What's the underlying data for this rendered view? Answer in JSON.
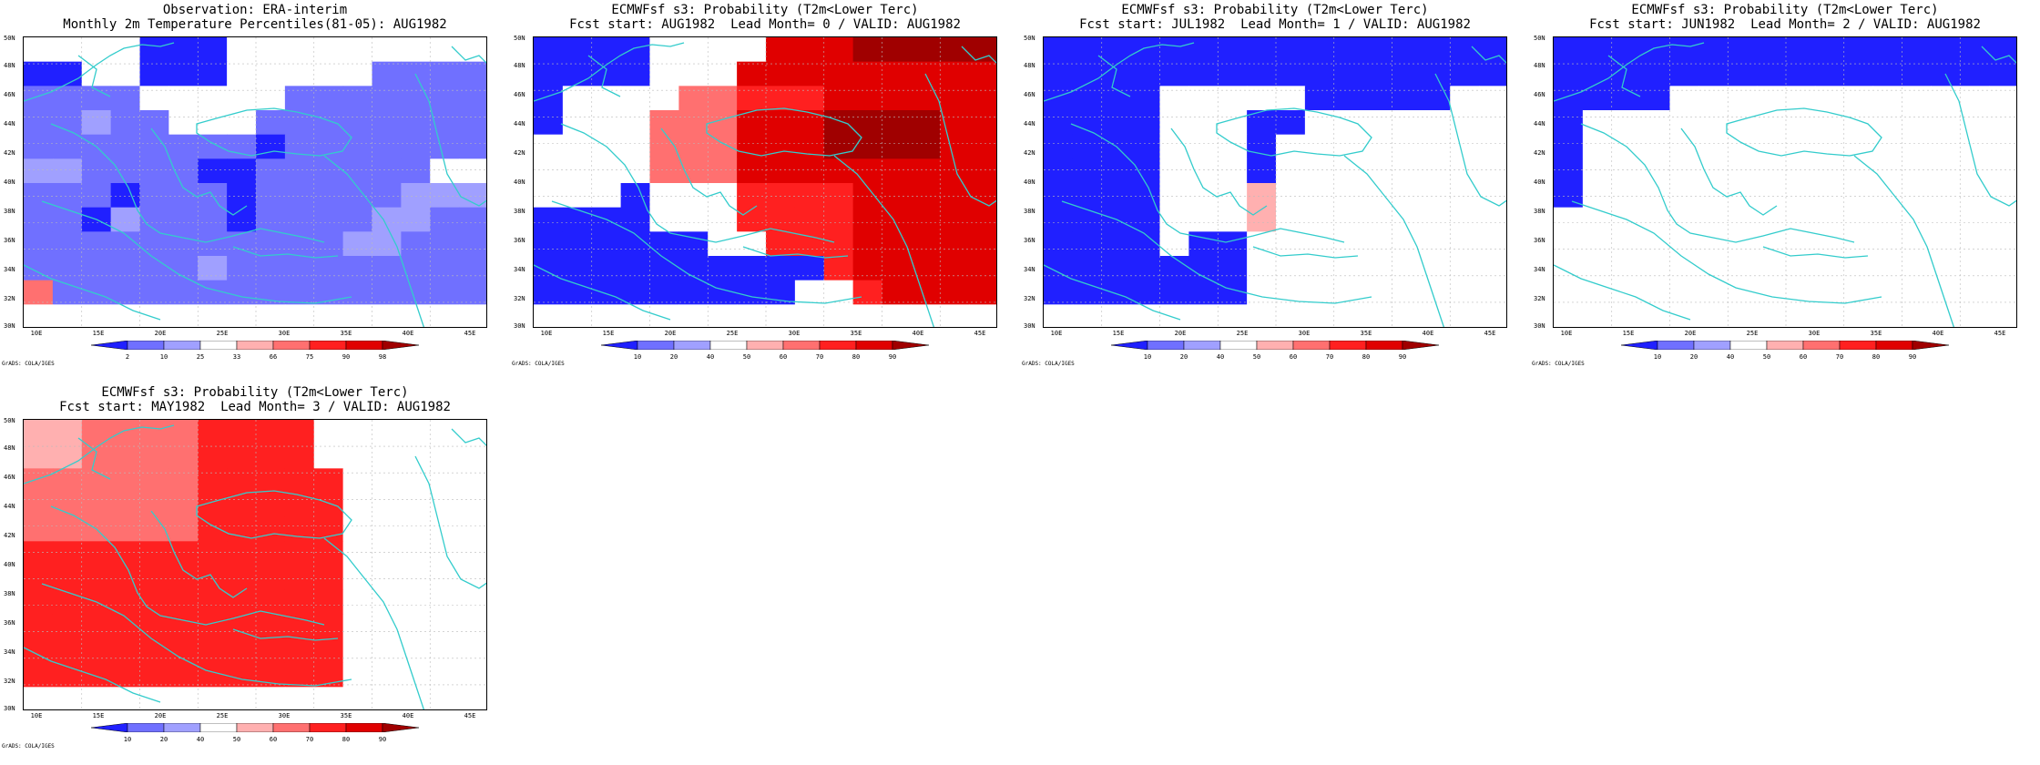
{
  "panels": [
    {
      "title1": "Observation: ERA-interim",
      "title2": "Monthly 2m Temperature Percentiles(81-05): AUG1982",
      "colorbar_labels": [
        "2",
        "10",
        "25",
        "33",
        "66",
        "75",
        "90",
        "98"
      ],
      "credit": "GrADS: COLA/IGES",
      "grid": [
        "0000111000000000",
        "1100111000002222",
        "2222000002222222",
        "2232200022222222",
        "2222222212222222",
        "3322221122222244",
        "2221222122222333",
        "2213222122223322",
        "2222222222233222",
        "2222223222222222",
        "6222222222222222",
        "0000000000000000"
      ]
    },
    {
      "title1": "ECMWFsf s3: Probability (T2m<Lower Terc)",
      "title2": "Fcst start: AUG1982  Lead Month= 0 / VALID: AUG1982",
      "colorbar_labels": [
        "10",
        "20",
        "40",
        "50",
        "60",
        "70",
        "80",
        "90"
      ],
      "credit": "GrADS: COLA/IGES",
      "grid": [
        "1111000088899999",
        "1111000888888888",
        "1000066777888888",
        "1000666888999988",
        "0000666888999988",
        "0000666888888888",
        "0001000777788888",
        "1111000777788888",
        "1111110077788888",
        "1111111111788888",
        "1111111110078888",
        "0000000000000000"
      ]
    },
    {
      "title1": "ECMWFsf s3: Probability (T2m<Lower Terc)",
      "title2": "Fcst start: JUL1982  Lead Month= 1 / VALID: AUG1982",
      "colorbar_labels": [
        "10",
        "20",
        "40",
        "50",
        "60",
        "70",
        "80",
        "90"
      ],
      "credit": "GrADS: COLA/IGES",
      "grid": [
        "1111111111111111",
        "1111111111111111",
        "1111000001111100",
        "1111000110000000",
        "1111000100000000",
        "1111000100000000",
        "1111000500000000",
        "1111000500000000",
        "1111011000000000",
        "1111111000000000",
        "1111111000000000",
        "0000000000000000"
      ]
    },
    {
      "title1": "ECMWFsf s3: Probability (T2m<Lower Terc)",
      "title2": "Fcst start: JUN1982  Lead Month= 2 / VALID: AUG1982",
      "colorbar_labels": [
        "10",
        "20",
        "40",
        "50",
        "60",
        "70",
        "80",
        "90"
      ],
      "credit": "GrADS: COLA/IGES",
      "grid": [
        "1111111111111111",
        "1111111111111111",
        "1111000000000000",
        "1000000000000000",
        "1000000000000000",
        "1000000000000000",
        "1000000000000000",
        "0000000000000000",
        "0000000000000000",
        "0000000000000000",
        "0000000000000000",
        "0000000000000000"
      ]
    },
    {
      "title1": "ECMWFsf s3: Probability (T2m<Lower Terc)",
      "title2": "Fcst start: MAY1982  Lead Month= 3 / VALID: AUG1982",
      "colorbar_labels": [
        "10",
        "20",
        "40",
        "50",
        "60",
        "70",
        "80",
        "90"
      ],
      "credit": "GrADS: COLA/IGES",
      "grid": [
        "5566667777000000",
        "5566667777000000",
        "6666667777700000",
        "6666667777700000",
        "6666667777700000",
        "7777777777700000",
        "7777777777700000",
        "7777777777700000",
        "7777777777700000",
        "7777777777700000",
        "7777777777700000",
        "0000000000000000"
      ]
    }
  ],
  "lat_labels": [
    "50N",
    "48N",
    "46N",
    "44N",
    "42N",
    "40N",
    "38N",
    "36N",
    "34N",
    "32N",
    "30N"
  ],
  "lon_labels": [
    "10E",
    "15E",
    "20E",
    "25E",
    "30E",
    "35E",
    "40E",
    "45E"
  ],
  "palette": [
    "#ffffff",
    "#2020ff",
    "#7070ff",
    "#a0a0ff",
    "#ffffff",
    "#ffb0b0",
    "#ff7070",
    "#ff2020",
    "#e00000",
    "#a00000"
  ],
  "coast_color": "#33cccc"
}
